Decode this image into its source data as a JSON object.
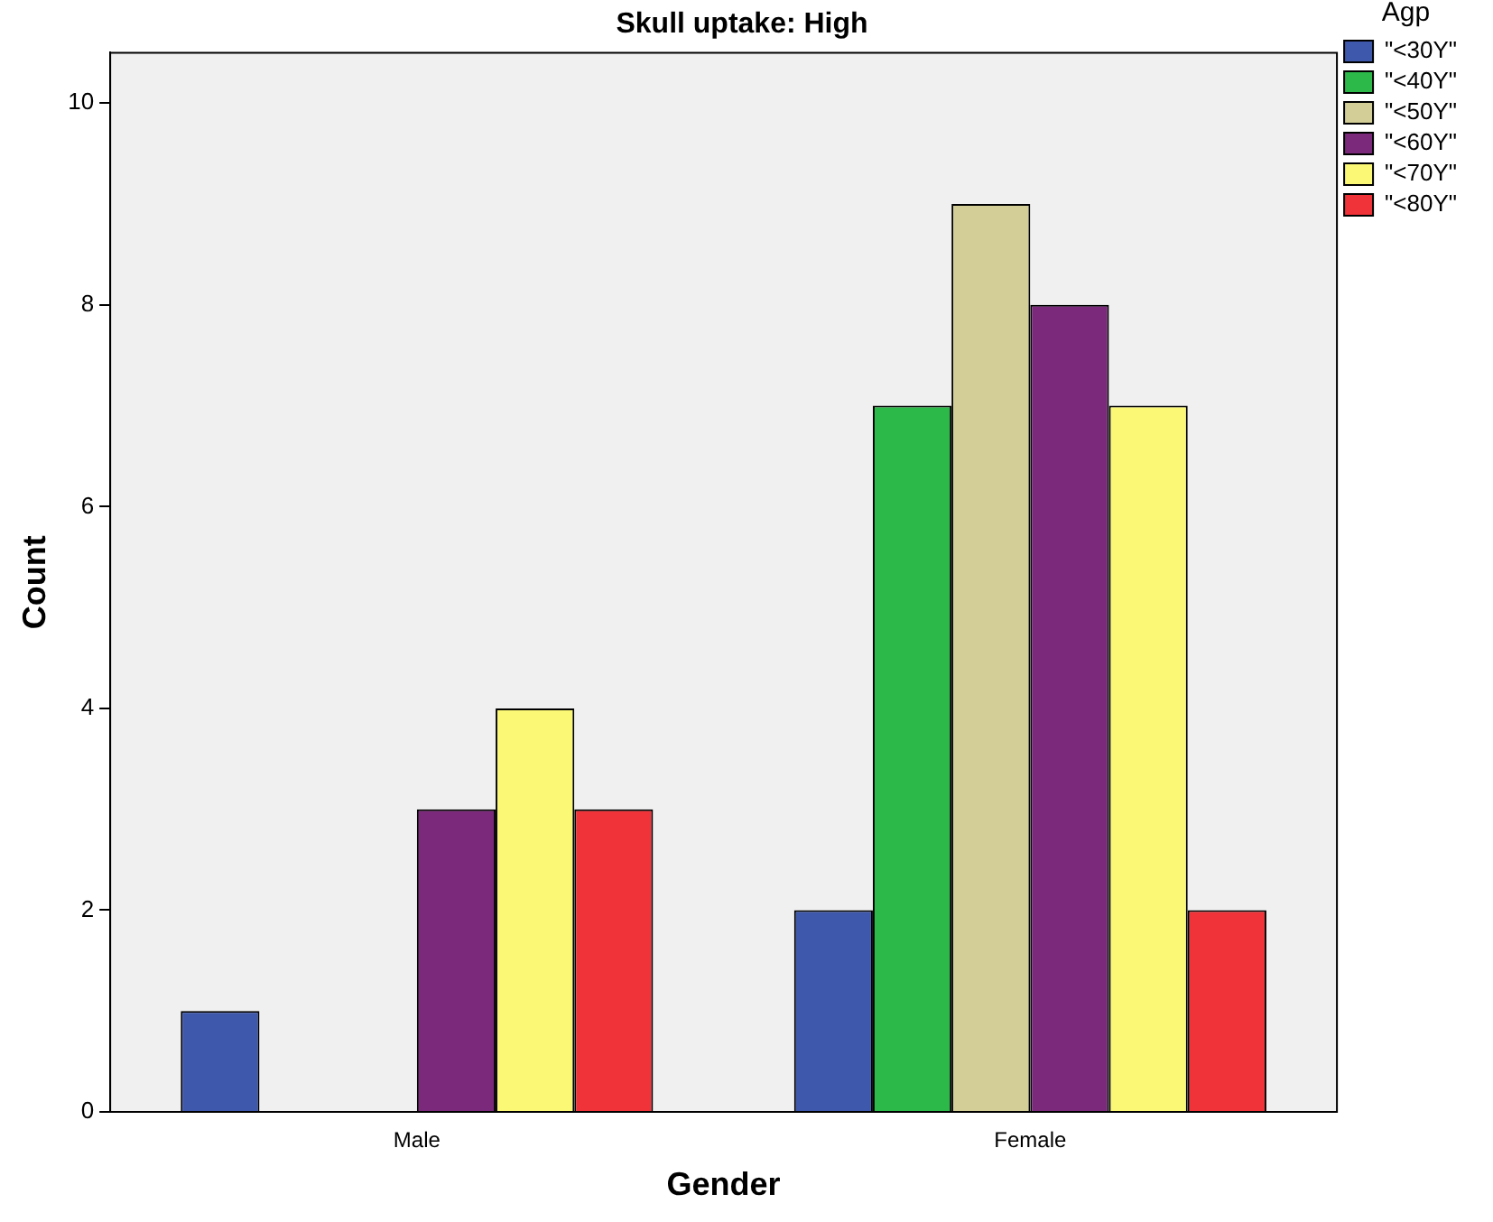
{
  "chart_data": {
    "type": "bar",
    "title": "Skull uptake: High",
    "xlabel": "Gender",
    "ylabel": "Count",
    "legend_title": "Agp",
    "categories": [
      "Male",
      "Female"
    ],
    "series": [
      {
        "name": "\"<30Y\"",
        "color": "#3e58ac",
        "values": [
          1,
          2
        ]
      },
      {
        "name": "\"<40Y\"",
        "color": "#2db84a",
        "values": [
          null,
          7
        ]
      },
      {
        "name": "\"<50Y\"",
        "color": "#d3ce97",
        "values": [
          null,
          9
        ]
      },
      {
        "name": "\"<60Y\"",
        "color": "#7b2a7b",
        "values": [
          3,
          8
        ]
      },
      {
        "name": "\"<70Y\"",
        "color": "#fbf876",
        "values": [
          4,
          7
        ]
      },
      {
        "name": "\"<80Y\"",
        "color": "#ef3338",
        "values": [
          3,
          2
        ]
      }
    ],
    "ylim": [
      0,
      10.5
    ],
    "yticks": [
      0,
      2,
      4,
      6,
      8,
      10
    ],
    "grid": false,
    "legend": "right"
  }
}
